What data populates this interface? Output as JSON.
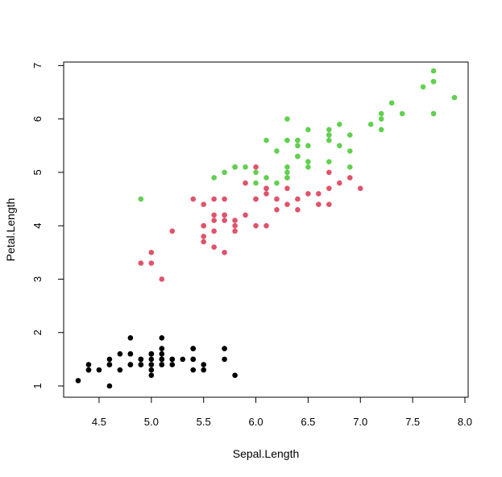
{
  "chart_data": {
    "type": "scatter",
    "title": "",
    "xlabel": "Sepal.Length",
    "ylabel": "Petal.Length",
    "xlim": [
      4.3,
      7.9
    ],
    "ylim": [
      1.0,
      6.9
    ],
    "x_ticks": [
      "4.5",
      "5.0",
      "5.5",
      "6.0",
      "6.5",
      "7.0",
      "7.5",
      "8.0"
    ],
    "y_ticks": [
      "1",
      "2",
      "3",
      "4",
      "5",
      "6",
      "7"
    ],
    "grid": false,
    "legend": "none",
    "series": [
      {
        "color": "#000000",
        "points": [
          [
            5.1,
            1.4
          ],
          [
            4.9,
            1.4
          ],
          [
            4.7,
            1.3
          ],
          [
            4.6,
            1.5
          ],
          [
            5.0,
            1.4
          ],
          [
            5.4,
            1.7
          ],
          [
            4.6,
            1.4
          ],
          [
            5.0,
            1.5
          ],
          [
            4.4,
            1.4
          ],
          [
            4.9,
            1.5
          ],
          [
            5.4,
            1.5
          ],
          [
            4.8,
            1.6
          ],
          [
            4.8,
            1.4
          ],
          [
            4.3,
            1.1
          ],
          [
            5.8,
            1.2
          ],
          [
            5.7,
            1.5
          ],
          [
            5.4,
            1.3
          ],
          [
            5.1,
            1.4
          ],
          [
            5.7,
            1.7
          ],
          [
            5.1,
            1.5
          ],
          [
            5.4,
            1.7
          ],
          [
            5.1,
            1.5
          ],
          [
            4.6,
            1.0
          ],
          [
            5.1,
            1.7
          ],
          [
            4.8,
            1.9
          ],
          [
            5.0,
            1.6
          ],
          [
            5.0,
            1.6
          ],
          [
            5.2,
            1.5
          ],
          [
            5.2,
            1.4
          ],
          [
            4.7,
            1.6
          ],
          [
            4.8,
            1.6
          ],
          [
            5.4,
            1.5
          ],
          [
            5.2,
            1.5
          ],
          [
            5.5,
            1.4
          ],
          [
            4.9,
            1.5
          ],
          [
            5.0,
            1.2
          ],
          [
            5.5,
            1.3
          ],
          [
            4.9,
            1.4
          ],
          [
            4.4,
            1.3
          ],
          [
            5.1,
            1.5
          ],
          [
            5.0,
            1.3
          ],
          [
            4.5,
            1.3
          ],
          [
            4.4,
            1.3
          ],
          [
            5.0,
            1.6
          ],
          [
            5.1,
            1.9
          ],
          [
            4.8,
            1.4
          ],
          [
            5.1,
            1.6
          ],
          [
            4.6,
            1.4
          ],
          [
            5.3,
            1.5
          ],
          [
            5.0,
            1.4
          ]
        ]
      },
      {
        "color": "#DF536B",
        "points": [
          [
            7.0,
            4.7
          ],
          [
            6.4,
            4.5
          ],
          [
            6.9,
            4.9
          ],
          [
            5.5,
            4.0
          ],
          [
            6.5,
            4.6
          ],
          [
            5.7,
            4.5
          ],
          [
            6.3,
            4.7
          ],
          [
            4.9,
            3.3
          ],
          [
            6.6,
            4.6
          ],
          [
            5.2,
            3.9
          ],
          [
            5.0,
            3.5
          ],
          [
            5.9,
            4.2
          ],
          [
            6.0,
            4.0
          ],
          [
            6.1,
            4.7
          ],
          [
            5.6,
            3.6
          ],
          [
            6.7,
            4.4
          ],
          [
            5.6,
            4.5
          ],
          [
            5.8,
            4.1
          ],
          [
            6.2,
            4.5
          ],
          [
            5.6,
            3.9
          ],
          [
            5.9,
            4.8
          ],
          [
            6.1,
            4.0
          ],
          [
            6.3,
            4.9
          ],
          [
            6.1,
            4.7
          ],
          [
            6.4,
            4.3
          ],
          [
            6.6,
            4.4
          ],
          [
            6.8,
            4.8
          ],
          [
            6.7,
            5.0
          ],
          [
            6.0,
            4.5
          ],
          [
            5.7,
            3.5
          ],
          [
            5.5,
            3.8
          ],
          [
            5.5,
            3.7
          ],
          [
            5.8,
            3.9
          ],
          [
            6.0,
            5.1
          ],
          [
            5.4,
            4.5
          ],
          [
            6.0,
            4.5
          ],
          [
            6.7,
            4.7
          ],
          [
            6.3,
            4.4
          ],
          [
            5.6,
            4.1
          ],
          [
            5.5,
            4.0
          ],
          [
            5.5,
            4.4
          ],
          [
            6.1,
            4.6
          ],
          [
            5.8,
            4.0
          ],
          [
            5.0,
            3.3
          ],
          [
            5.6,
            4.2
          ],
          [
            5.7,
            4.2
          ],
          [
            5.7,
            4.2
          ],
          [
            6.2,
            4.3
          ],
          [
            5.1,
            3.0
          ],
          [
            5.7,
            4.1
          ]
        ]
      },
      {
        "color": "#61D04F",
        "points": [
          [
            6.3,
            6.0
          ],
          [
            5.8,
            5.1
          ],
          [
            7.1,
            5.9
          ],
          [
            6.3,
            5.6
          ],
          [
            6.5,
            5.8
          ],
          [
            7.6,
            6.6
          ],
          [
            4.9,
            4.5
          ],
          [
            7.3,
            6.3
          ],
          [
            6.7,
            5.8
          ],
          [
            7.2,
            6.1
          ],
          [
            6.5,
            5.1
          ],
          [
            6.4,
            5.3
          ],
          [
            6.8,
            5.5
          ],
          [
            5.7,
            5.0
          ],
          [
            5.8,
            5.1
          ],
          [
            6.4,
            5.3
          ],
          [
            6.5,
            5.5
          ],
          [
            7.7,
            6.7
          ],
          [
            7.7,
            6.9
          ],
          [
            6.0,
            5.0
          ],
          [
            6.9,
            5.7
          ],
          [
            5.6,
            4.9
          ],
          [
            7.7,
            6.7
          ],
          [
            6.3,
            4.9
          ],
          [
            6.7,
            5.7
          ],
          [
            7.2,
            6.0
          ],
          [
            6.2,
            4.8
          ],
          [
            6.1,
            4.9
          ],
          [
            6.4,
            5.6
          ],
          [
            7.2,
            5.8
          ],
          [
            7.4,
            6.1
          ],
          [
            7.9,
            6.4
          ],
          [
            6.4,
            5.6
          ],
          [
            6.3,
            5.1
          ],
          [
            6.1,
            5.6
          ],
          [
            7.7,
            6.1
          ],
          [
            6.3,
            5.6
          ],
          [
            6.4,
            5.5
          ],
          [
            6.0,
            4.8
          ],
          [
            6.9,
            5.4
          ],
          [
            6.7,
            5.6
          ],
          [
            6.9,
            5.1
          ],
          [
            5.8,
            5.1
          ],
          [
            6.8,
            5.9
          ],
          [
            6.7,
            5.7
          ],
          [
            6.7,
            5.2
          ],
          [
            6.3,
            5.0
          ],
          [
            6.5,
            5.2
          ],
          [
            6.2,
            5.4
          ],
          [
            5.9,
            5.1
          ]
        ]
      }
    ]
  }
}
